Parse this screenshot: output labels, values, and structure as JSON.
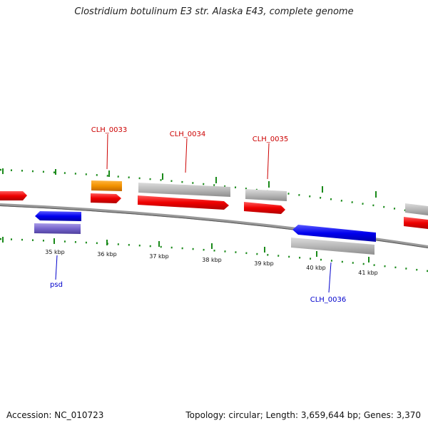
{
  "title": "Clostridium botulinum E3 str. Alaska E43, complete genome",
  "footer": {
    "accession": "Accession: NC_010723",
    "summary": "Topology: circular; Length: 3,659,644 bp; Genes: 3,370"
  },
  "colors": {
    "backbone": "#888888",
    "tick": "#1a8a1a",
    "forward_label": "#cc0000",
    "reverse_label": "#0000cc",
    "red": "#ff0000",
    "orange": "#ff9900",
    "grey": "#bbbbbb",
    "blue": "#0000ff",
    "purple": "#7766cc"
  },
  "scale_ticks": [
    "35 kbp",
    "36 kbp",
    "37 kbp",
    "38 kbp",
    "39 kbp",
    "40 kbp",
    "41 kbp"
  ],
  "gene_labels": {
    "forward": [
      "CLH_0033",
      "CLH_0034",
      "CLH_0035"
    ],
    "reverse": [
      "psd",
      "CLH_0036"
    ]
  }
}
